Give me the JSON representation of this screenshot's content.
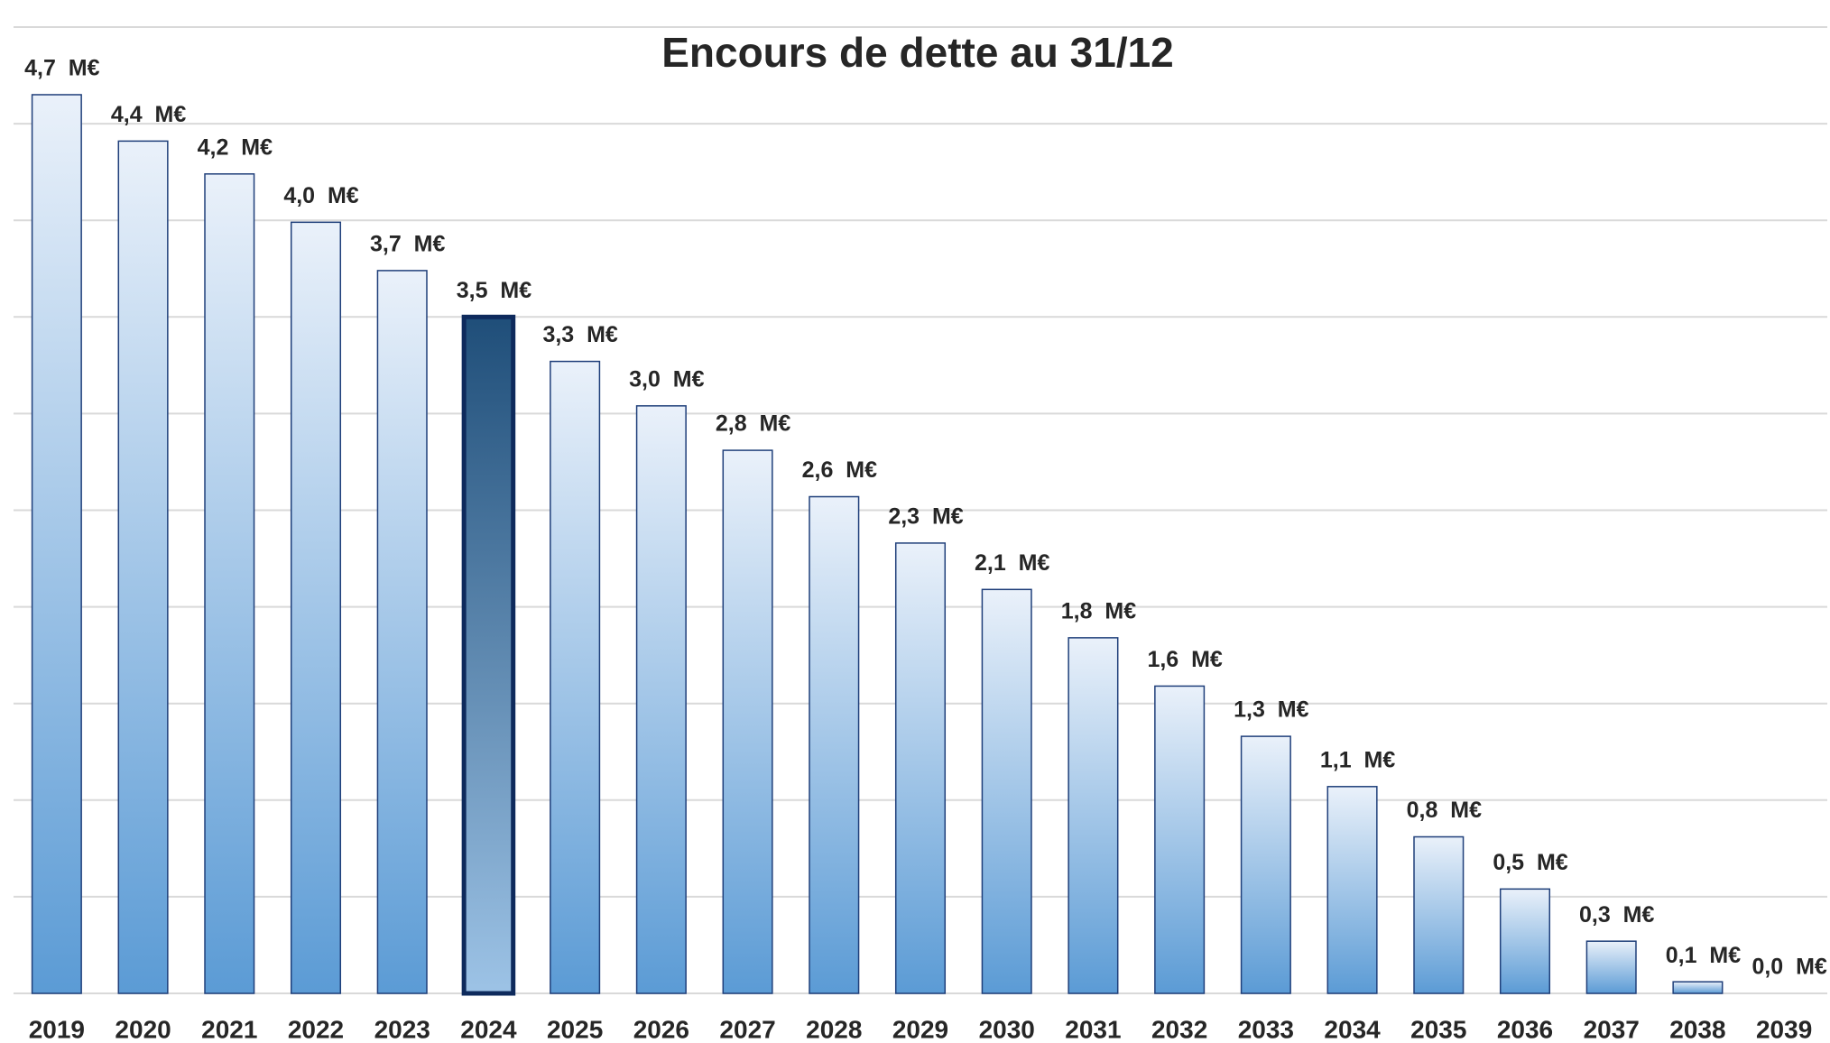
{
  "chart_data": {
    "type": "bar",
    "title": "Encours de dette au 31/12",
    "categories": [
      "2019",
      "2020",
      "2021",
      "2022",
      "2023",
      "2024",
      "2025",
      "2026",
      "2027",
      "2028",
      "2029",
      "2030",
      "2031",
      "2032",
      "2033",
      "2034",
      "2035",
      "2036",
      "2037",
      "2038",
      "2039"
    ],
    "values": [
      4.65,
      4.41,
      4.24,
      3.99,
      3.74,
      3.5,
      3.27,
      3.04,
      2.81,
      2.57,
      2.33,
      2.09,
      1.84,
      1.59,
      1.33,
      1.07,
      0.81,
      0.54,
      0.27,
      0.06,
      0
    ],
    "value_labels": [
      "4,7  M€",
      "4,4  M€",
      "4,2  M€",
      "4,0  M€",
      "3,7  M€",
      "3,5  M€",
      "3,3  M€",
      "3,0  M€",
      "2,8  M€",
      "2,6  M€",
      "2,3  M€",
      "2,1  M€",
      "1,8  M€",
      "1,6  M€",
      "1,3  M€",
      "1,1  M€",
      "0,8  M€",
      "0,5  M€",
      "0,3  M€",
      "0,1  M€",
      "0,0  M€"
    ],
    "colors": [
      "#5b9bd5",
      "#5b9bd5",
      "#5b9bd5",
      "#5b9bd5",
      "#5b9bd5",
      "#1f4e79",
      "#5b9bd5",
      "#5b9bd5",
      "#5b9bd5",
      "#5b9bd5",
      "#5b9bd5",
      "#5b9bd5",
      "#5b9bd5",
      "#5b9bd5",
      "#5b9bd5",
      "#5b9bd5",
      "#5b9bd5",
      "#5b9bd5",
      "#5b9bd5",
      "#5b9bd5",
      "#5b9bd5"
    ],
    "ylim": [
      0,
      5
    ],
    "yticks": [
      0,
      0.5,
      1,
      1.5,
      2,
      2.5,
      3,
      3.5,
      4,
      4.5,
      5
    ],
    "grid": true
  }
}
